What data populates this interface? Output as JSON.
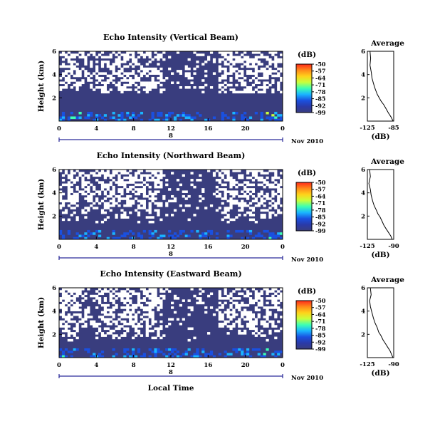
{
  "figure": {
    "xlabel": "Local Time",
    "date_day": "8",
    "date_month_year": "Nov 2010"
  },
  "colorbar": {
    "unit": "(dB)",
    "ticks": [
      "-50",
      "-57",
      "-64",
      "-71",
      "-78",
      "-85",
      "-92",
      "-99"
    ],
    "colors": [
      "#ff2a1a",
      "#ff8a1a",
      "#ffd21a",
      "#c8ff3c",
      "#3cffb4",
      "#1ab4ff",
      "#1a50e0",
      "#2a3aa8",
      "#393d7e"
    ]
  },
  "chart_data": [
    {
      "type": "heatmap",
      "title": "Echo Intensity (Vertical Beam)",
      "ylabel": "Height (km)",
      "x_ticks": [
        "0",
        "4",
        "8",
        "12",
        "16",
        "20",
        "0"
      ],
      "y_ticks": [
        "6",
        "4",
        "2"
      ],
      "xlim": [
        0,
        24
      ],
      "ylim": [
        0,
        6
      ],
      "value_range_db": [
        -99,
        -50
      ],
      "beam": "vertical"
    },
    {
      "type": "heatmap",
      "title": "Echo Intensity (Northward Beam)",
      "ylabel": "Height (km)",
      "x_ticks": [
        "0",
        "4",
        "8",
        "12",
        "16",
        "20",
        "0"
      ],
      "y_ticks": [
        "6",
        "4",
        "2"
      ],
      "xlim": [
        0,
        24
      ],
      "ylim": [
        0,
        6
      ],
      "value_range_db": [
        -99,
        -50
      ],
      "beam": "northward"
    },
    {
      "type": "heatmap",
      "title": "Echo Intensity (Eastward Beam)",
      "ylabel": "Height (km)",
      "x_ticks": [
        "0",
        "4",
        "8",
        "12",
        "16",
        "20",
        "0"
      ],
      "y_ticks": [
        "6",
        "4",
        "2"
      ],
      "xlim": [
        0,
        24
      ],
      "ylim": [
        0,
        6
      ],
      "value_range_db": [
        -99,
        -50
      ],
      "beam": "eastward"
    },
    {
      "type": "line",
      "title": "Average",
      "xlabel": "(dB)",
      "x_ticks": [
        "-125",
        "-85"
      ],
      "y_ticks": [
        "6",
        "4",
        "2"
      ],
      "xlim": [
        -125,
        -85
      ],
      "ylim": [
        0,
        6
      ],
      "series": [
        {
          "x": [
            -121,
            -120,
            -121,
            -119,
            -118,
            -116,
            -114,
            -112,
            -110,
            -107,
            -104,
            -100,
            -97,
            -93,
            -89,
            -86
          ],
          "y": [
            6.0,
            5.4,
            4.8,
            4.2,
            3.7,
            3.3,
            2.9,
            2.6,
            2.3,
            2.0,
            1.7,
            1.4,
            1.1,
            0.7,
            0.35,
            0.0
          ]
        }
      ]
    },
    {
      "type": "line",
      "title": "Average",
      "xlabel": "(dB)",
      "x_ticks": [
        "-125",
        "-90"
      ],
      "y_ticks": [
        "6",
        "4",
        "2"
      ],
      "xlim": [
        -125,
        -90
      ],
      "ylim": [
        0,
        6
      ],
      "series": [
        {
          "x": [
            -122,
            -121,
            -123,
            -121,
            -120,
            -118,
            -116,
            -113,
            -111,
            -108,
            -105,
            -103,
            -100,
            -97,
            -94,
            -92
          ],
          "y": [
            6.0,
            5.4,
            4.8,
            4.3,
            3.8,
            3.3,
            2.9,
            2.5,
            2.2,
            1.9,
            1.5,
            1.2,
            0.9,
            0.6,
            0.3,
            0.0
          ]
        }
      ]
    },
    {
      "type": "line",
      "title": "Average",
      "xlabel": "(dB)",
      "x_ticks": [
        "-125",
        "-90"
      ],
      "y_ticks": [
        "6",
        "4",
        "2"
      ],
      "xlim": [
        -125,
        -90
      ],
      "ylim": [
        0,
        6
      ],
      "series": [
        {
          "x": [
            -121,
            -120,
            -122,
            -121,
            -119,
            -117,
            -115,
            -112,
            -110,
            -107,
            -104,
            -101,
            -98,
            -95,
            -93,
            -91
          ],
          "y": [
            6.0,
            5.4,
            4.9,
            4.4,
            3.9,
            3.4,
            3.0,
            2.6,
            2.2,
            1.9,
            1.5,
            1.2,
            0.9,
            0.6,
            0.3,
            0.0
          ]
        }
      ]
    }
  ]
}
